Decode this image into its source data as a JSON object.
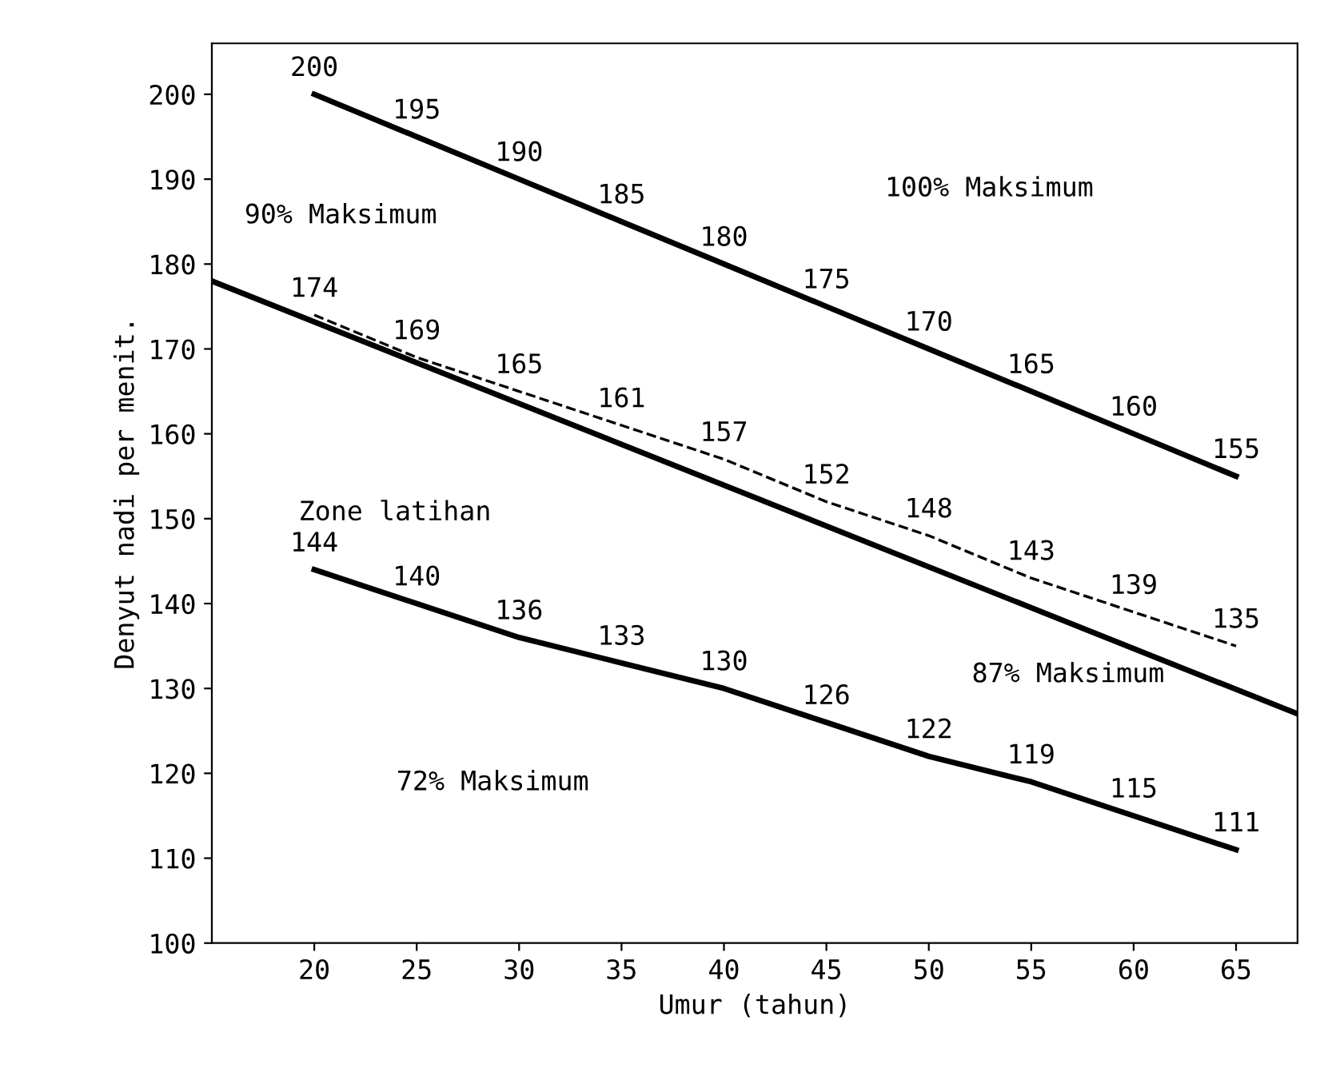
{
  "chart_data": {
    "type": "line",
    "xlabel": "Umur (tahun)",
    "ylabel": "Denyut nadi per menit.",
    "x": [
      20,
      25,
      30,
      35,
      40,
      45,
      50,
      55,
      60,
      65
    ],
    "xlim": [
      15,
      68
    ],
    "ylim": [
      100,
      206
    ],
    "xticks": [
      20,
      25,
      30,
      35,
      40,
      45,
      50,
      55,
      60,
      65
    ],
    "yticks": [
      100,
      110,
      120,
      130,
      140,
      150,
      160,
      170,
      180,
      190,
      200
    ],
    "grid": false,
    "marker": "none",
    "series": [
      {
        "color": "#000000",
        "values": [
          200,
          195,
          190,
          185,
          180,
          175,
          170,
          165,
          160,
          155
        ],
        "value_labels": [
          "200",
          "195",
          "190",
          "185",
          "180",
          "175",
          "170",
          "165",
          "160",
          "155"
        ]
      },
      {
        "color": "#000000",
        "line_style": "dashed",
        "values": [
          174,
          169,
          165,
          161,
          157,
          152,
          148,
          143,
          139,
          135
        ],
        "value_labels": [
          "174",
          "169",
          "165",
          "161",
          "157",
          "152",
          "148",
          "143",
          "139",
          "135"
        ]
      },
      {
        "color": "#000000",
        "x": [
          15,
          68
        ],
        "values": [
          178,
          127
        ]
      },
      {
        "color": "#000000",
        "values": [
          144,
          140,
          136,
          133,
          130,
          126,
          122,
          119,
          115,
          111
        ],
        "value_labels": [
          "144",
          "140",
          "136",
          "133",
          "130",
          "126",
          "122",
          "119",
          "115",
          "111"
        ]
      }
    ],
    "annotations": [
      "100% Maksimum",
      "90% Maksimum",
      "87% Maksimum",
      "72% Maksimum",
      "Zone latihan"
    ]
  }
}
